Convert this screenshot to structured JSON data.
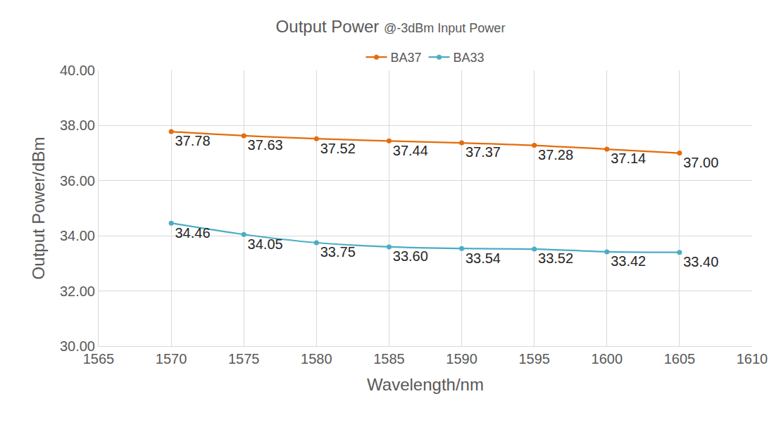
{
  "chart_data": {
    "type": "line",
    "title": "Output Power",
    "subtitle": "@-3dBm Input Power",
    "x_label": "Wavelength/nm",
    "y_label": "Output Power/dBm",
    "x": [
      1570,
      1575,
      1580,
      1585,
      1590,
      1595,
      1600,
      1605
    ],
    "series": [
      {
        "name": "BA37",
        "color": "#e46c0a",
        "marker": "circle",
        "line_style": "spline",
        "values": [
          37.78,
          37.63,
          37.52,
          37.44,
          37.37,
          37.28,
          37.14,
          37.0
        ],
        "value_labels": [
          "37.78",
          "37.63",
          "37.52",
          "37.44",
          "37.37",
          "37.28",
          "37.14",
          "37.00"
        ]
      },
      {
        "name": "BA33",
        "color": "#4bacc6",
        "marker": "circle",
        "line_style": "spline",
        "values": [
          34.46,
          34.05,
          33.75,
          33.6,
          33.54,
          33.52,
          33.42,
          33.4
        ],
        "value_labels": [
          "34.46",
          "34.05",
          "33.75",
          "33.60",
          "33.54",
          "33.52",
          "33.42",
          "33.40"
        ]
      }
    ],
    "xlim": [
      1565,
      1610
    ],
    "xticks": [
      1565,
      1570,
      1575,
      1580,
      1585,
      1590,
      1595,
      1600,
      1605,
      1610
    ],
    "ylim": [
      30,
      40
    ],
    "yticks": [
      {
        "value": 30,
        "label": "30.00"
      },
      {
        "value": 32,
        "label": "32.00"
      },
      {
        "value": 34,
        "label": "34.00"
      },
      {
        "value": 36,
        "label": "36.00"
      },
      {
        "value": 38,
        "label": "38.00"
      },
      {
        "value": 40,
        "label": "40.00"
      }
    ],
    "grid": true,
    "legend": "top",
    "data_labels": true
  }
}
